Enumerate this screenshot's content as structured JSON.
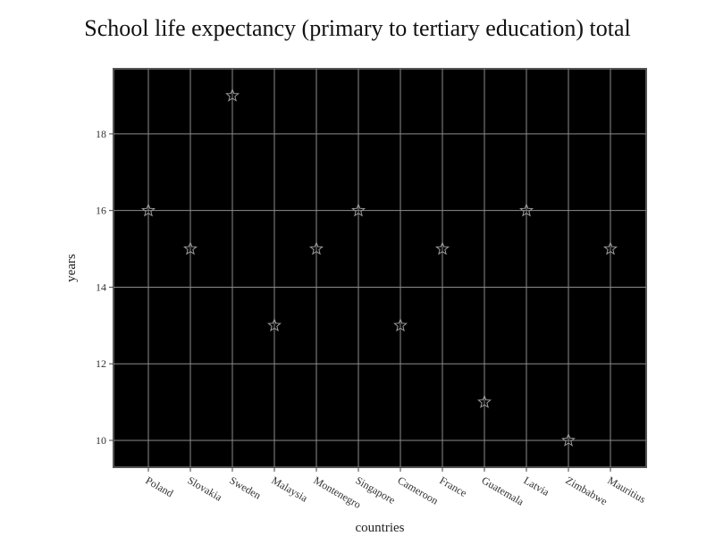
{
  "chart_data": {
    "type": "scatter",
    "title": "School life expectancy (primary to tertiary education) total",
    "xlabel": "countries",
    "ylabel": "years",
    "categories": [
      "Poland",
      "Slovakia",
      "Sweden",
      "Malaysia",
      "Montenegro",
      "Singapore",
      "Cameroon",
      "France",
      "Guatemala",
      "Latvia",
      "Zimbabwe",
      "Mauritius"
    ],
    "values": [
      16,
      15,
      19,
      13,
      15,
      16,
      13,
      15,
      11,
      16,
      10,
      15
    ],
    "yticks": [
      10,
      12,
      14,
      16,
      18
    ],
    "ylim": [
      9.3,
      19.7
    ],
    "grid": true,
    "marker": "star",
    "colors": {
      "plot_background": "#000000",
      "grid": "#8c8c8c",
      "frame": "#555555",
      "marker_stroke": "#9a9a9a"
    }
  }
}
